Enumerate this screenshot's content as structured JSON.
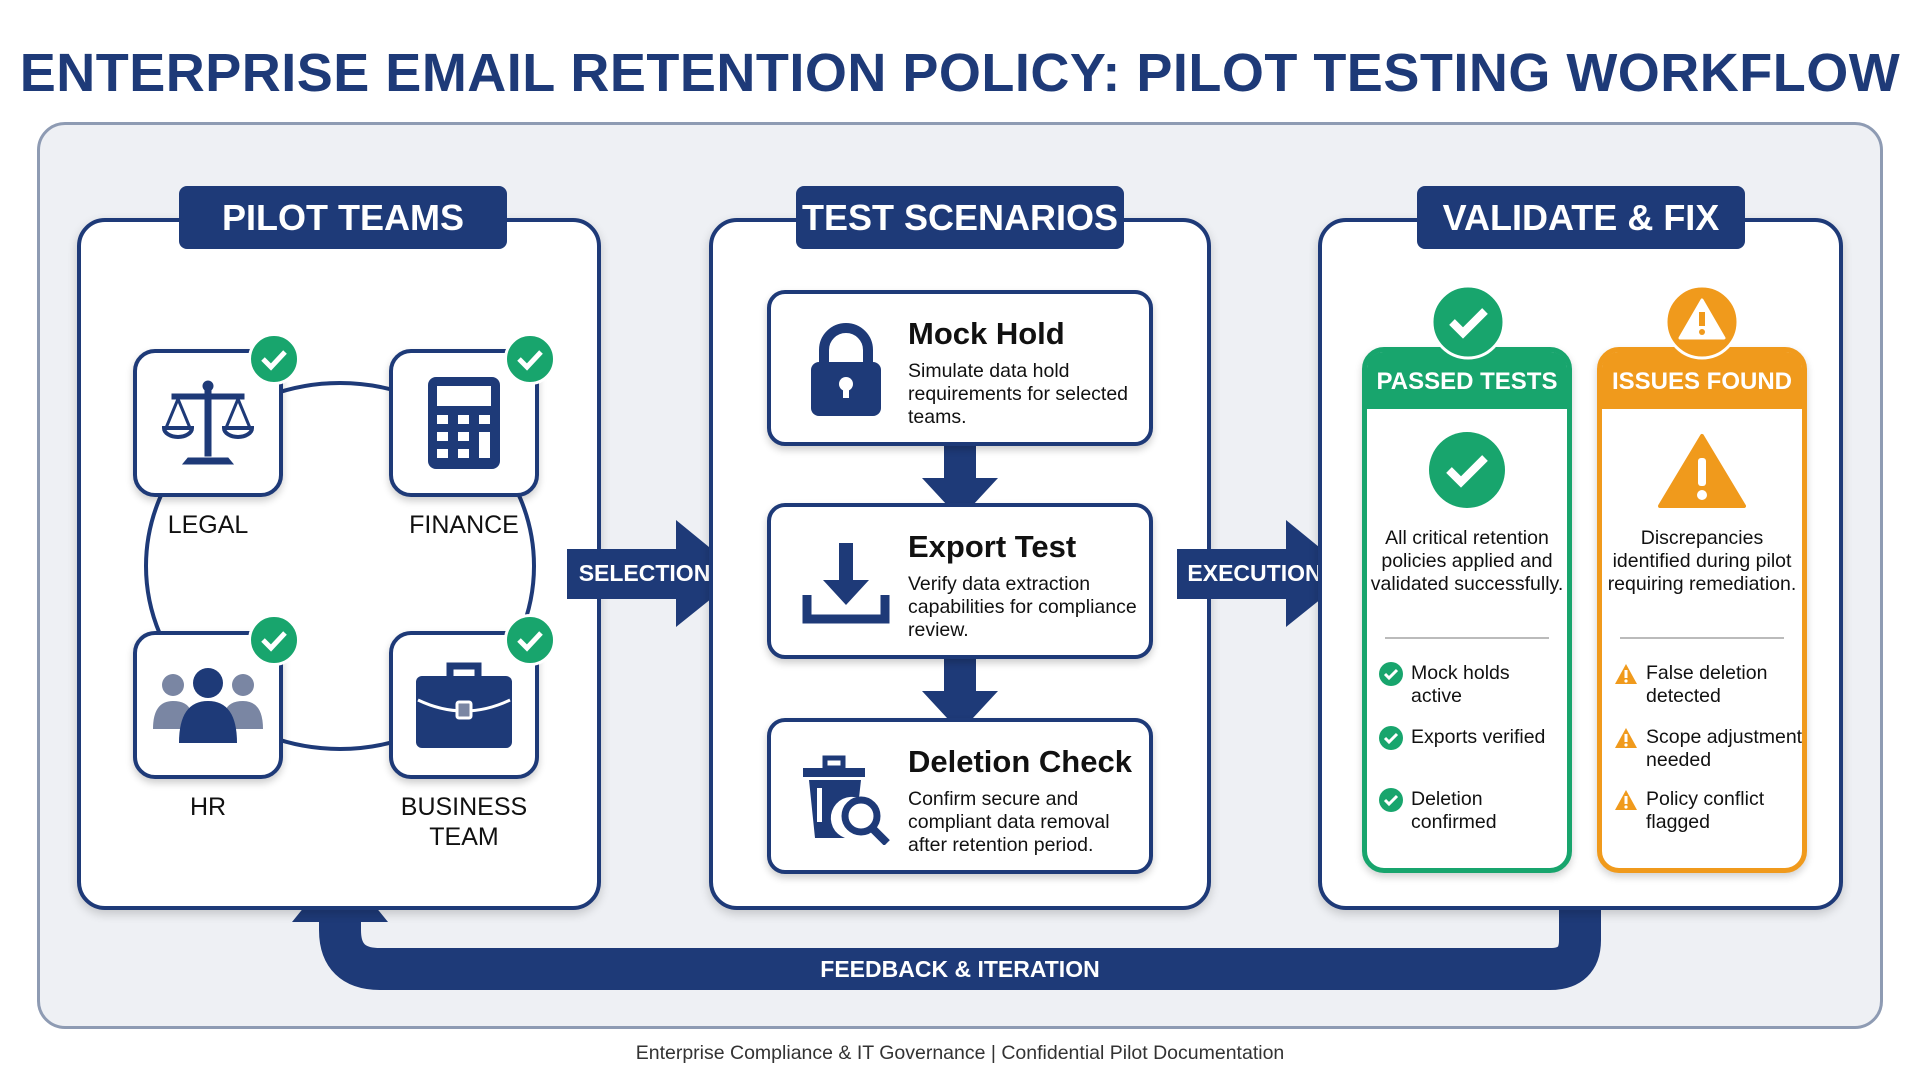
{
  "title": "ENTERPRISE EMAIL RETENTION POLICY: PILOT TESTING WORKFLOW",
  "colors": {
    "navy": "#1e3a78",
    "green": "#18a56d",
    "orange": "#f09a1c"
  },
  "pilot_teams": {
    "header": "PILOT TEAMS",
    "teams": [
      {
        "label": "LEGAL",
        "icon": "scales-icon",
        "status": "checked"
      },
      {
        "label": "FINANCE",
        "icon": "calculator-icon",
        "status": "checked"
      },
      {
        "label": "HR",
        "icon": "people-icon",
        "status": "checked"
      },
      {
        "label": "BUSINESS TEAM",
        "label_line1": "BUSINESS",
        "label_line2": "TEAM",
        "icon": "briefcase-icon",
        "status": "checked"
      }
    ]
  },
  "arrows": {
    "selection": "SELECTION",
    "execution": "EXECUTION",
    "feedback": "FEEDBACK & ITERATION"
  },
  "test_scenarios": {
    "header": "TEST SCENARIOS",
    "items": [
      {
        "title": "Mock Hold",
        "desc": "Simulate data hold requirements for selected teams.",
        "icon": "lock-icon"
      },
      {
        "title": "Export Test",
        "desc": "Verify data extraction capabilities for compliance review.",
        "icon": "download-icon"
      },
      {
        "title": "Deletion Check",
        "desc": "Confirm secure and compliant data removal after retention period.",
        "icon": "trash-search-icon"
      }
    ]
  },
  "validate": {
    "header": "VALIDATE & FIX",
    "passed": {
      "title": "PASSED TESTS",
      "desc": "All critical retention policies applied and validated successfully.",
      "items": [
        "Mock holds active",
        "Exports verified",
        "Deletion confirmed"
      ]
    },
    "issues": {
      "title": "ISSUES FOUND",
      "desc": "Discrepancies identified during pilot requiring remediation.",
      "items": [
        "False deletion detected",
        "Scope adjustment needed",
        "Policy conflict flagged"
      ]
    }
  },
  "footer": "Enterprise Compliance & IT Governance | Confidential Pilot Documentation"
}
